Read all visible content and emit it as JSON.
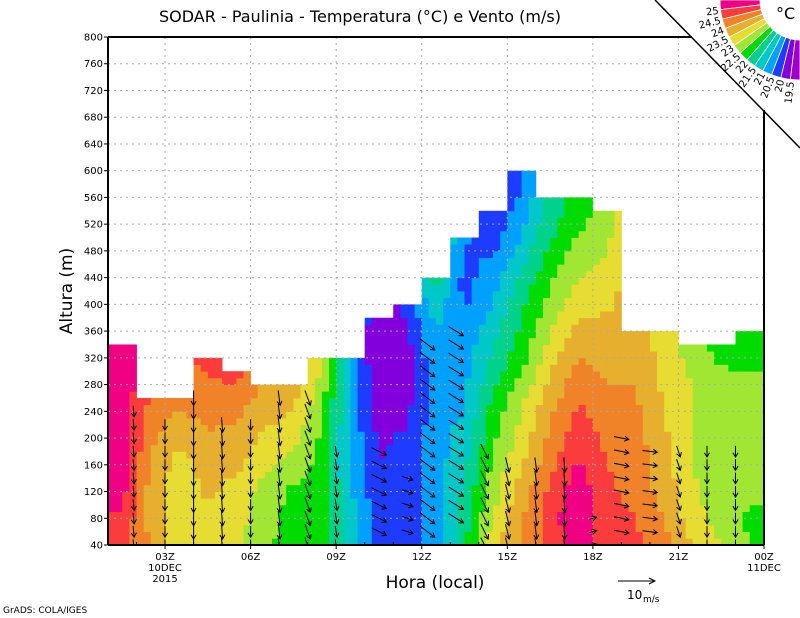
{
  "chart_data": {
    "type": "heatmap",
    "title": "SODAR - Paulinia - Temperatura (°C) e Vento (m/s)",
    "xlabel": "Hora (local)",
    "ylabel": "Altura (m)",
    "xlim_hours": [
      1,
      24
    ],
    "ylim": [
      40,
      800
    ],
    "grid": true,
    "y_ticks": [
      40,
      80,
      120,
      160,
      200,
      240,
      280,
      320,
      360,
      400,
      440,
      480,
      520,
      560,
      600,
      640,
      680,
      720,
      760,
      800
    ],
    "x_ticks": [
      {
        "hour": 3,
        "lines": [
          "03Z",
          "10DEC",
          "2015"
        ]
      },
      {
        "hour": 6,
        "lines": [
          "06Z"
        ]
      },
      {
        "hour": 9,
        "lines": [
          "09Z"
        ]
      },
      {
        "hour": 12,
        "lines": [
          "12Z"
        ]
      },
      {
        "hour": 15,
        "lines": [
          "15Z"
        ]
      },
      {
        "hour": 18,
        "lines": [
          "18Z"
        ]
      },
      {
        "hour": 21,
        "lines": [
          "21Z"
        ]
      },
      {
        "hour": 24,
        "lines": [
          "00Z",
          "11DEC"
        ]
      }
    ],
    "temperature": {
      "units": "°C",
      "levels_start_m": 40,
      "levels_step_m": 40,
      "columns": [
        {
          "hour": 1.5,
          "top": 340,
          "values": [
            24.7,
            24.9,
            25.2,
            25.3,
            25.3,
            25.3,
            25.3,
            25.3,
            25.3
          ]
        },
        {
          "hour": 2.5,
          "top": 260,
          "values": [
            24.0,
            23.8,
            23.8,
            23.9,
            24.1,
            24.3,
            24.6
          ]
        },
        {
          "hour": 3.5,
          "top": 260,
          "values": [
            23.2,
            23.1,
            23.2,
            23.3,
            23.6,
            24.0,
            24.3
          ]
        },
        {
          "hour": 4.5,
          "top": 320,
          "values": [
            23.2,
            23.3,
            23.6,
            23.7,
            23.9,
            24.2,
            24.4,
            24.7,
            25.1
          ]
        },
        {
          "hour": 5.5,
          "top": 300,
          "values": [
            23.2,
            23.2,
            23.3,
            23.6,
            23.8,
            24.1,
            24.5,
            24.8
          ]
        },
        {
          "hour": 6.5,
          "top": 280,
          "values": [
            22.6,
            22.7,
            22.8,
            23.1,
            23.4,
            23.7,
            23.9
          ]
        },
        {
          "hour": 7.5,
          "top": 280,
          "values": [
            22.3,
            22.3,
            22.4,
            22.8,
            23.2,
            23.5,
            23.8
          ]
        },
        {
          "hour": 8.5,
          "top": 320,
          "values": [
            22.3,
            22.2,
            22.2,
            22.3,
            22.4,
            22.6,
            22.8,
            23.2,
            23.8
          ]
        },
        {
          "hour": 9.5,
          "top": 320,
          "values": [
            21.3,
            21.2,
            21.1,
            21.0,
            20.9,
            20.9,
            20.8,
            20.8,
            20.8
          ]
        },
        {
          "hour": 10.5,
          "top": 380,
          "values": [
            20.2,
            20.2,
            20.1,
            20.0,
            19.9,
            19.7,
            19.6,
            19.5,
            19.5,
            19.6
          ]
        },
        {
          "hour": 11.5,
          "top": 400,
          "values": [
            20.2,
            20.2,
            20.3,
            20.2,
            20.1,
            19.9,
            19.8,
            19.8,
            19.9,
            20.2
          ]
        },
        {
          "hour": 12.5,
          "top": 440,
          "values": [
            20.7,
            20.7,
            20.7,
            20.8,
            20.8,
            20.8,
            20.8,
            20.9,
            21.0,
            21.3,
            21.8
          ]
        },
        {
          "hour": 13.5,
          "top": 500,
          "values": [
            21.9,
            21.8,
            21.6,
            21.4,
            21.2,
            21.0,
            20.9,
            20.8,
            20.6,
            20.4,
            20.3,
            20.5,
            20.6
          ]
        },
        {
          "hour": 14.5,
          "top": 540,
          "values": [
            23.3,
            23.0,
            22.8,
            22.6,
            22.4,
            22.2,
            21.9,
            21.6,
            21.3,
            21.0,
            20.8,
            20.4,
            20.2,
            19.9
          ]
        },
        {
          "hour": 15.5,
          "top": 600,
          "values": [
            24.1,
            24.0,
            23.7,
            23.5,
            23.2,
            23.0,
            22.7,
            22.3,
            22.1,
            21.9,
            21.6,
            21.2,
            20.9,
            20.6,
            20.3
          ]
        },
        {
          "hour": 16.5,
          "top": 560,
          "values": [
            24.7,
            24.8,
            24.6,
            24.3,
            24.1,
            23.9,
            23.6,
            23.3,
            23.0,
            22.7,
            22.4,
            22.1,
            21.8,
            21.7
          ]
        },
        {
          "hour": 17.5,
          "top": 560,
          "values": [
            25.3,
            25.4,
            25.3,
            25.1,
            24.8,
            24.6,
            24.3,
            24.0,
            23.7,
            23.3,
            23.0,
            22.7,
            22.4,
            22.2
          ]
        },
        {
          "hour": 18.5,
          "top": 540,
          "values": [
            24.8,
            24.7,
            24.6,
            24.5,
            24.4,
            24.2,
            24.0,
            23.8,
            23.7,
            23.4,
            23.2,
            23.0,
            22.8,
            22.5
          ]
        },
        {
          "hour": 19.5,
          "top": 360,
          "values": [
            24.6,
            24.5,
            24.3,
            24.3,
            24.2,
            24.1,
            24.0,
            23.9,
            23.8
          ]
        },
        {
          "hour": 20.5,
          "top": 360,
          "values": [
            24.2,
            24.0,
            23.8,
            23.7,
            23.6,
            23.5,
            23.4,
            23.3,
            23.2
          ]
        },
        {
          "hour": 21.5,
          "top": 340,
          "values": [
            23.5,
            23.2,
            23.1,
            23.0,
            23.0,
            23.0,
            23.0,
            22.8,
            22.7
          ]
        },
        {
          "hour": 22.5,
          "top": 340,
          "values": [
            23.0,
            22.8,
            22.7,
            22.7,
            22.8,
            22.8,
            22.7,
            22.4,
            22.2
          ]
        },
        {
          "hour": 23.5,
          "top": 360,
          "values": [
            22.5,
            22.4,
            22.6,
            22.7,
            22.7,
            22.7,
            22.6,
            22.4,
            22.2
          ]
        }
      ]
    },
    "legend": {
      "placement": "top-right",
      "units": "°C",
      "thresholds": [
        19.5,
        20,
        20.5,
        21,
        21.5,
        22,
        22.5,
        23,
        23.5,
        24,
        24.5,
        25
      ],
      "labels": [
        "19.5",
        "20",
        "20.5",
        "21",
        "21.5",
        "22",
        "22.5",
        "23",
        "23.5",
        "24",
        "24.5",
        "25"
      ],
      "colors": [
        "#a000c8",
        "#8200dc",
        "#1e3cff",
        "#00a0ff",
        "#00c8c8",
        "#00d28c",
        "#00dc00",
        "#a0e632",
        "#e6dc32",
        "#e6af2d",
        "#f08228",
        "#fa3c3c",
        "#f00082"
      ]
    },
    "wind": {
      "units": "m/s",
      "groups": [
        {
          "hour": 1.9,
          "from": 40,
          "to": 240,
          "u": 0.3,
          "v": -3
        },
        {
          "hour": 3.0,
          "from": 40,
          "to": 220,
          "u": 0,
          "v": -3
        },
        {
          "hour": 4.0,
          "from": 40,
          "to": 260,
          "u": 0,
          "v": -4
        },
        {
          "hour": 5.0,
          "from": 40,
          "to": 220,
          "u": 0.3,
          "v": -4
        },
        {
          "hour": 6.0,
          "from": 40,
          "to": 220,
          "u": 0,
          "v": -3
        },
        {
          "hour": 7.0,
          "from": 40,
          "to": 260,
          "u": 0.5,
          "v": -4
        },
        {
          "hour": 8.0,
          "from": 40,
          "to": 260,
          "u": 1.5,
          "v": -4
        },
        {
          "hour": 9.0,
          "from": 40,
          "to": 180,
          "u": 0.5,
          "v": -3
        },
        {
          "hour": 10.5,
          "from": 60,
          "to": 180,
          "u": 4,
          "v": -2
        },
        {
          "hour": 11.5,
          "from": 60,
          "to": 140,
          "u": 3,
          "v": -1
        },
        {
          "hour": 12.2,
          "from": 60,
          "to": 340,
          "u": 4,
          "v": -3
        },
        {
          "hour": 13.2,
          "from": 80,
          "to": 360,
          "u": 4,
          "v": -2.5
        },
        {
          "hour": 14.2,
          "from": 40,
          "to": 180,
          "u": 2,
          "v": -4
        },
        {
          "hour": 15.0,
          "from": 40,
          "to": 160,
          "u": 1,
          "v": -4
        },
        {
          "hour": 16.0,
          "from": 40,
          "to": 160,
          "u": 0.5,
          "v": -4
        },
        {
          "hour": 17.0,
          "from": 40,
          "to": 160,
          "u": 0.3,
          "v": -4
        },
        {
          "hour": 18.0,
          "from": 40,
          "to": 80,
          "u": 2,
          "v": 0.5
        },
        {
          "hour": 19.0,
          "from": 60,
          "to": 200,
          "u": 4,
          "v": -0.8
        },
        {
          "hour": 20.0,
          "from": 60,
          "to": 180,
          "u": 4,
          "v": -0.5
        },
        {
          "hour": 21.0,
          "from": 60,
          "to": 180,
          "u": 1,
          "v": -3
        },
        {
          "hour": 22.0,
          "from": 40,
          "to": 180,
          "u": 0,
          "v": -3
        },
        {
          "hour": 23.0,
          "from": 40,
          "to": 180,
          "u": 0,
          "v": -3
        }
      ],
      "reference": {
        "value": 10,
        "label": "10",
        "unit_label": "m/s"
      }
    }
  },
  "footer": {
    "credit": "GrADS: COLA/IGES"
  }
}
